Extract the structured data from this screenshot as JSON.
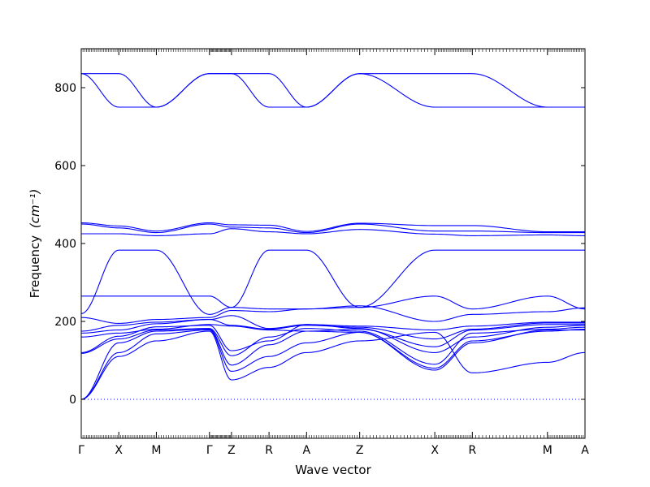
{
  "chart_data": {
    "type": "line",
    "xlabel": "Wave vector",
    "ylabel": "Frequency",
    "ylabel_unit": "(cm⁻¹)",
    "ylim": [
      -100,
      900
    ],
    "yticks": [
      0,
      200,
      400,
      600,
      800
    ],
    "grid": false,
    "line_color": "#0000ff",
    "zero_reference_line": 0,
    "segments_per_path": 22,
    "path_labels": [
      "Γ",
      "X",
      "M",
      "Γ",
      "Z",
      "R",
      "A",
      "Z",
      "X",
      "R",
      "M",
      "A"
    ],
    "path_positions": [
      0,
      0.5,
      1.0,
      1.707,
      2.0,
      2.5,
      3.0,
      3.707,
      4.707,
      5.207,
      6.207,
      6.707
    ],
    "bands": [
      [
        0,
        110,
        150,
        175,
        50,
        82,
        120,
        150,
        172,
        68,
        95,
        120
      ],
      [
        0,
        120,
        168,
        178,
        72,
        110,
        145,
        172,
        75,
        145,
        178,
        178
      ],
      [
        0,
        145,
        175,
        180,
        88,
        140,
        175,
        172,
        80,
        150,
        175,
        180
      ],
      [
        118,
        155,
        178,
        182,
        112,
        160,
        182,
        175,
        90,
        170,
        180,
        185
      ],
      [
        120,
        162,
        186,
        190,
        125,
        150,
        192,
        182,
        120,
        160,
        185,
        190
      ],
      [
        160,
        170,
        180,
        192,
        188,
        178,
        175,
        180,
        135,
        178,
        192,
        192
      ],
      [
        170,
        178,
        194,
        205,
        190,
        180,
        190,
        185,
        155,
        180,
        196,
        196
      ],
      [
        175,
        190,
        198,
        205,
        215,
        182,
        192,
        188,
        178,
        188,
        198,
        198
      ],
      [
        210,
        195,
        205,
        210,
        228,
        225,
        232,
        240,
        200,
        218,
        225,
        235
      ],
      [
        220,
        383,
        383,
        218,
        236,
        383,
        383,
        236,
        383,
        383,
        383,
        383
      ],
      [
        265,
        265,
        265,
        265,
        236,
        232,
        232,
        236,
        265,
        232,
        265,
        232
      ],
      [
        425,
        425,
        420,
        425,
        438,
        430,
        425,
        436,
        424,
        420,
        422,
        420
      ],
      [
        450,
        440,
        428,
        450,
        442,
        440,
        428,
        450,
        432,
        432,
        428,
        428
      ],
      [
        453,
        445,
        432,
        453,
        448,
        447,
        431,
        452,
        446,
        446,
        430,
        430
      ],
      [
        836,
        750,
        750,
        836,
        836,
        750,
        750,
        836,
        750,
        750,
        750,
        750
      ],
      [
        836,
        836,
        750,
        836,
        836,
        836,
        750,
        836,
        836,
        836,
        750,
        750
      ]
    ]
  }
}
